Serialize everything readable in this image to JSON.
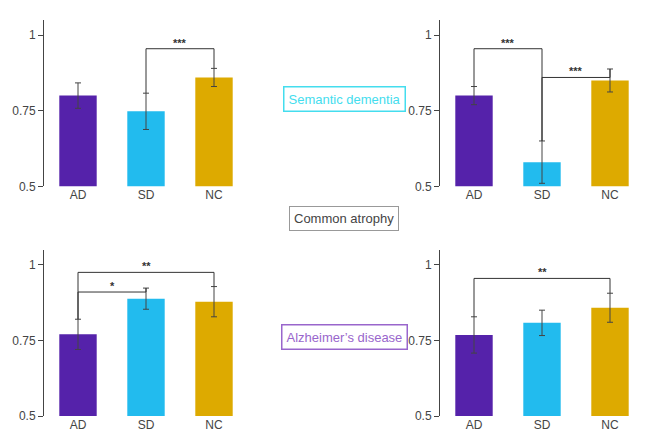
{
  "chart_data": [
    {
      "type": "bar",
      "categories": [
        "AD",
        "SD",
        "NC"
      ],
      "values": [
        0.8,
        0.748,
        0.86
      ],
      "errors": [
        0.042,
        0.06,
        0.03
      ],
      "colors": [
        "#5522aa",
        "#22bbee",
        "#ddaa00"
      ],
      "ylim": [
        0.5,
        1.05
      ],
      "yticks": [
        0.5,
        0.75,
        1
      ],
      "grid": false,
      "annotations": [
        {
          "text": "***",
          "x1": "SD",
          "x2": "NC",
          "y": 0.955
        }
      ]
    },
    {
      "type": "bar",
      "categories": [
        "AD",
        "SD",
        "NC"
      ],
      "values": [
        0.8,
        0.58,
        0.85
      ],
      "errors": [
        0.03,
        0.07,
        0.038
      ],
      "colors": [
        "#5522aa",
        "#22bbee",
        "#ddaa00"
      ],
      "ylim": [
        0.5,
        1.05
      ],
      "yticks": [
        0.5,
        0.75,
        1
      ],
      "grid": false,
      "annotations": [
        {
          "text": "***",
          "x1": "AD",
          "x2": "SD",
          "y": 0.955
        },
        {
          "text": "***",
          "x1": "SD",
          "x2": "NC",
          "y": 0.86
        }
      ]
    },
    {
      "type": "bar",
      "categories": [
        "AD",
        "SD",
        "NC"
      ],
      "values": [
        0.77,
        0.888,
        0.878
      ],
      "errors": [
        0.05,
        0.035,
        0.05
      ],
      "colors": [
        "#5522aa",
        "#22bbee",
        "#ddaa00"
      ],
      "ylim": [
        0.5,
        1.05
      ],
      "yticks": [
        0.5,
        0.75,
        1
      ],
      "grid": false,
      "annotations": [
        {
          "text": "**",
          "x1": "AD",
          "x2": "NC",
          "y": 0.975
        },
        {
          "text": "*",
          "x1": "AD",
          "x2": "SD",
          "y": 0.91
        }
      ]
    },
    {
      "type": "bar",
      "categories": [
        "AD",
        "SD",
        "NC"
      ],
      "values": [
        0.768,
        0.808,
        0.858
      ],
      "errors": [
        0.06,
        0.042,
        0.048
      ],
      "colors": [
        "#5522aa",
        "#22bbee",
        "#ddaa00"
      ],
      "ylim": [
        0.5,
        1.05
      ],
      "yticks": [
        0.5,
        0.75,
        1
      ],
      "grid": false,
      "annotations": [
        {
          "text": "**",
          "x1": "AD",
          "x2": "NC",
          "y": 0.955
        }
      ]
    }
  ],
  "annotations": [
    {
      "text": "Semantic dementia",
      "color": "#44ddee"
    },
    {
      "text": "Common atrophy"
    },
    {
      "text": "Alzheimer’s disease",
      "color": "#9966cc"
    }
  ]
}
